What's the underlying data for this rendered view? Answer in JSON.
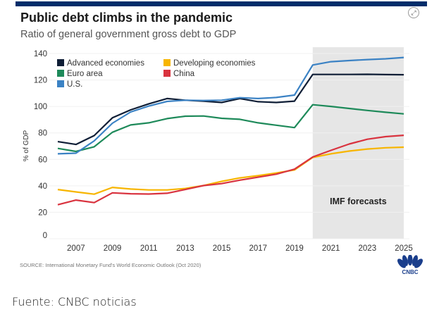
{
  "title": "Public debt climbs in the pandemic",
  "subtitle": "Ratio of general government gross debt to GDP",
  "source": "SOURCE: International Monetary Fund's World Economic Outlook (Oct 2020)",
  "footer": "Fuente: CNBC noticias",
  "logo_text": "CNBC",
  "icons": {
    "expand": "expand-icon"
  },
  "chart_data": {
    "type": "line",
    "title": "Public debt climbs in the pandemic",
    "ylabel": "% of GDP",
    "xlabel": "",
    "ylim": [
      0,
      140
    ],
    "yticks": [
      0,
      20,
      40,
      60,
      80,
      100,
      120,
      140
    ],
    "xticks": [
      2007,
      2009,
      2011,
      2013,
      2015,
      2017,
      2019,
      2021,
      2023,
      2025
    ],
    "x": [
      2006,
      2007,
      2008,
      2009,
      2010,
      2011,
      2012,
      2013,
      2014,
      2015,
      2016,
      2017,
      2018,
      2019,
      2020,
      2021,
      2022,
      2023,
      2024,
      2025
    ],
    "forecast": {
      "label": "IMF forecasts",
      "from": 2020,
      "to": 2025
    },
    "legend_position": "top-left",
    "series": [
      {
        "name": "Advanced economies",
        "color": "#0f1e36",
        "values": [
          73.4,
          71.3,
          78,
          91.4,
          97.4,
          102,
          106,
          104.7,
          104,
          103,
          106,
          103.6,
          103,
          104,
          124.2,
          124.2,
          124.2,
          124.3,
          124.1,
          124
        ]
      },
      {
        "name": "Euro area",
        "color": "#1e8a5a",
        "values": [
          68.3,
          66,
          69.5,
          80.5,
          86,
          87.6,
          90.8,
          92.6,
          92.8,
          91,
          90.3,
          87.6,
          85.8,
          84,
          101.3,
          100,
          98.5,
          97,
          95.6,
          94.4
        ]
      },
      {
        "name": "U.S.",
        "color": "#3b82c4",
        "values": [
          64.2,
          64.7,
          74,
          87.3,
          95.8,
          100.3,
          103.8,
          104.7,
          104.5,
          104.7,
          106.6,
          106,
          106.8,
          108.6,
          131.3,
          133.8,
          134.7,
          135.4,
          136,
          137
        ]
      },
      {
        "name": "Developing economies",
        "color": "#f7b500",
        "values": [
          37.2,
          35.4,
          33.7,
          38.8,
          37.6,
          36.9,
          36.9,
          38,
          40.2,
          43.4,
          46,
          47.7,
          49.7,
          52,
          61.5,
          64.2,
          66.3,
          67.8,
          68.8,
          69.2
        ]
      },
      {
        "name": "China",
        "color": "#d9333f",
        "values": [
          25.7,
          29.2,
          27.3,
          34.7,
          34,
          33.8,
          34.4,
          37.2,
          40.2,
          41.7,
          44.3,
          46.5,
          48.8,
          52.6,
          61.8,
          66.8,
          71.6,
          75.2,
          77.2,
          78.2
        ]
      }
    ]
  }
}
